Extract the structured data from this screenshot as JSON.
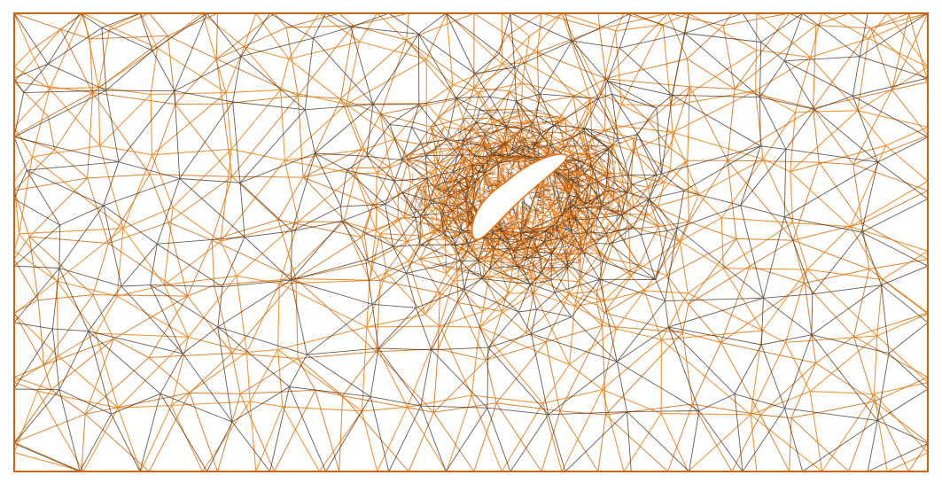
{
  "figure": {
    "description_visible_text": ""
  },
  "colors": {
    "background": "#ffffff",
    "mesh_light": "#f08a24",
    "mesh_mid": "#d9751c",
    "mesh_dark": "#3a2614",
    "dense_core": "#e8720e",
    "airfoil_fill": "#ffffff",
    "border": "#c8650f"
  },
  "mesh": {
    "layers": 3,
    "airfoil_shape": "cambered-ellipse",
    "refinement": "radial-towards-airfoil"
  }
}
